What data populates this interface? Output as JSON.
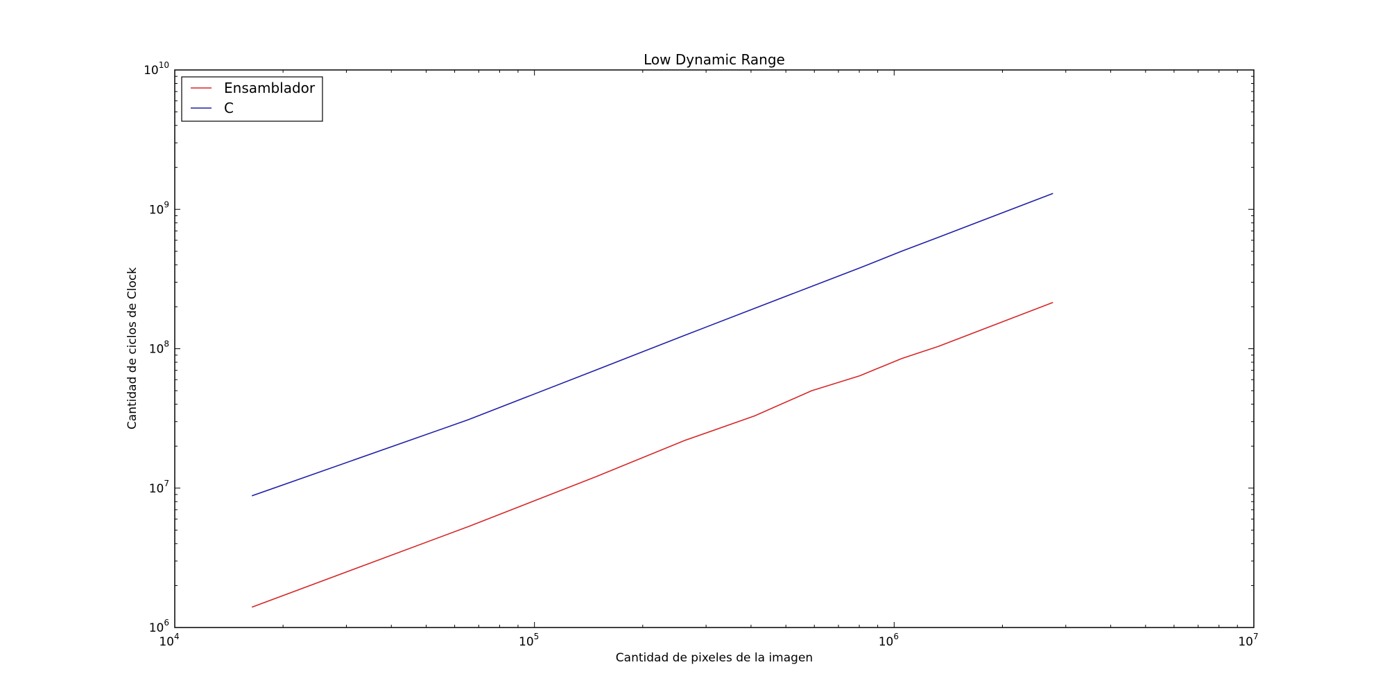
{
  "chart_data": {
    "type": "line",
    "title": "Low Dynamic Range",
    "xlabel": "Cantidad de pixeles de la imagen",
    "ylabel": "Cantidad de ciclos de Clock",
    "xscale": "log",
    "yscale": "log",
    "xlim": [
      10000,
      10000000
    ],
    "ylim": [
      1000000,
      10000000000
    ],
    "x_ticks": [
      {
        "base": "10",
        "exp": "4",
        "value": 10000
      },
      {
        "base": "10",
        "exp": "5",
        "value": 100000
      },
      {
        "base": "10",
        "exp": "6",
        "value": 1000000
      },
      {
        "base": "10",
        "exp": "7",
        "value": 10000000
      }
    ],
    "y_ticks": [
      {
        "base": "10",
        "exp": "6",
        "value": 1000000
      },
      {
        "base": "10",
        "exp": "7",
        "value": 10000000
      },
      {
        "base": "10",
        "exp": "8",
        "value": 100000000
      },
      {
        "base": "10",
        "exp": "9",
        "value": 1000000000
      },
      {
        "base": "10",
        "exp": "10",
        "value": 10000000000
      }
    ],
    "legend_position": "top-left",
    "grid": false,
    "series": [
      {
        "name": "Ensamblador",
        "color": "#d62728",
        "x": [
          16384,
          65536,
          147456,
          262144,
          409600,
          589824,
          802816,
          1048576,
          1327104,
          2764800
        ],
        "y": [
          1400000,
          5300000,
          12000000,
          22000000,
          33000000,
          50000000,
          64000000,
          85000000,
          104000000,
          215000000
        ]
      },
      {
        "name": "C",
        "color": "#1f1fa8",
        "x": [
          16384,
          65536,
          147456,
          262144,
          409600,
          589824,
          802816,
          1048576,
          1327104,
          2764800
        ],
        "y": [
          8800000,
          31000000,
          70000000,
          125000000,
          195000000,
          280000000,
          380000000,
          500000000,
          630000000,
          1300000000
        ]
      }
    ]
  }
}
